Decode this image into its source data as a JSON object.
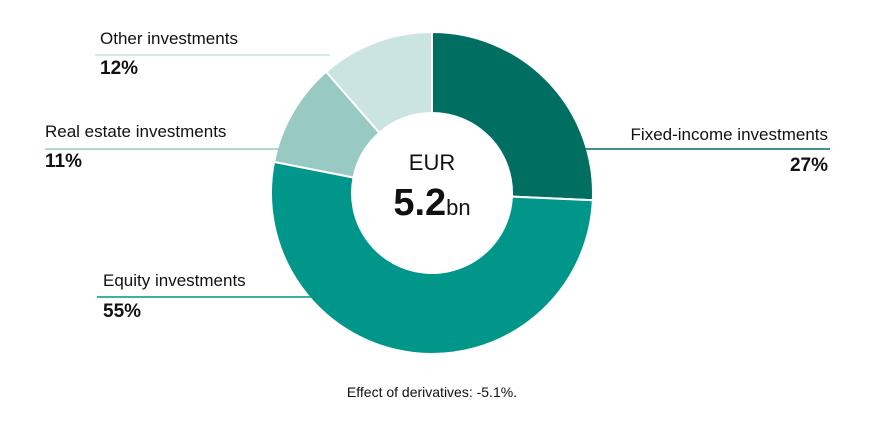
{
  "chart_data": {
    "type": "donut",
    "categories": [
      "Fixed-income investments",
      "Equity investments",
      "Real estate investments",
      "Other investments"
    ],
    "values": [
      27,
      55,
      11,
      12
    ],
    "value_labels": [
      "27%",
      "55%",
      "11%",
      "12%"
    ],
    "colors": [
      "#006f62",
      "#00968a",
      "#99c9c3",
      "#cce4e1"
    ],
    "center_label": "EUR",
    "center_value": "5.2",
    "center_unit": "bn",
    "note": "Effect of derivatives: -5.1%."
  }
}
